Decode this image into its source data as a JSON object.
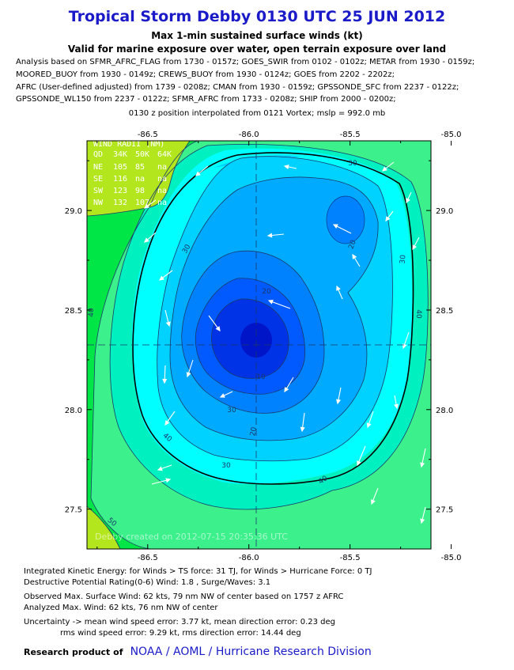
{
  "header": {
    "title": "Tropical Storm Debby 0130 UTC 25 JUN 2012",
    "subtitle": "Max 1-min sustained surface winds (kt)",
    "subtitle2": "Valid for marine exposure over water, open terrain exposure over land",
    "sources": [
      "Analysis based on SFMR_AFRC_FLAG from 1730 - 0157z; GOES_SWIR from 0102 - 0102z; METAR from 1930 - 0159z;",
      "MOORED_BUOY from 1930 - 0149z; CREWS_BUOY from 1930 - 0124z; GOES from 2202 - 2202z;",
      "AFRC (User-defined adjusted) from 1739 - 0208z; CMAN from 1930 - 0159z; GPSSONDE_SFC from 2237 - 0122z;",
      "GPSSONDE_WL150 from 2237 - 0122z; SFMR_AFRC from 1733 - 0208z; SHIP from 2000 - 0200z;"
    ],
    "position_note": "0130 z position interpolated from 0121 Vortex; mslp = 992.0 mb"
  },
  "map": {
    "lon_ticks": [
      "-86.5",
      "-86.0",
      "-85.5",
      "-85.0"
    ],
    "lon_values": [
      -86.5,
      -86.0,
      -85.5,
      -85.0
    ],
    "lat_ticks": [
      "29.0",
      "28.5",
      "28.0",
      "27.5"
    ],
    "lat_values": [
      29.0,
      28.5,
      28.0,
      27.5
    ],
    "lon_range": [
      -86.8,
      -85.1
    ],
    "lat_range": [
      27.3,
      29.35
    ],
    "center": {
      "lon": -86.05,
      "lat": 28.33
    },
    "contour_labels": [
      "30",
      "30",
      "30",
      "30",
      "30",
      "40",
      "40",
      "40",
      "40",
      "20",
      "20",
      "20",
      "10",
      "50"
    ],
    "wind_radii_table": {
      "header": "WIND RADII (NM)",
      "columns": [
        "QD",
        "34K",
        "50K",
        "64K"
      ],
      "rows": [
        [
          "NE",
          "105",
          "85",
          "na"
        ],
        [
          "SE",
          "116",
          "na",
          "na"
        ],
        [
          "SW",
          "123",
          "98",
          "na"
        ],
        [
          "NW",
          "132",
          "107",
          "na"
        ]
      ]
    },
    "watermark": "Debby     created on 2012-07-15 20:35:36 UTC",
    "colors": {
      "ts_yellowgreen": "#b4e61e",
      "green": "#00e646",
      "lightgreen": "#3cf08c",
      "aqua_green": "#00f0c0",
      "cyan": "#00ffff",
      "sky": "#00d2ff",
      "blue1": "#00aaff",
      "blue2": "#0082ff",
      "blue3": "#005aff",
      "blue4": "#0032e6",
      "blue5": "#0014c8"
    }
  },
  "footer": {
    "ike": "Integrated Kinetic Energy: for Winds > TS force: 31 TJ, for Winds > Hurricane Force: 0 TJ",
    "dpr": "Destructive Potential Rating(0-6)   Wind: 1.8 , Surge/Waves: 3.1",
    "obs_max": "Observed Max. Surface Wind: 62 kts, 79 nm NW of center based on 1757 z AFRC",
    "ana_max": "Analyzed Max. Wind: 62 kts, 76 nm  NW of center",
    "uncertainty1": "Uncertainty -> mean wind speed error: 3.77 kt, mean direction error: 0.23 deg",
    "uncertainty2": "rms wind speed error: 9.29 kt, rms direction error: 14.44 deg",
    "research_label": "Research product of",
    "org": "NOAA  /  AOML  /  Hurricane Research Division"
  }
}
